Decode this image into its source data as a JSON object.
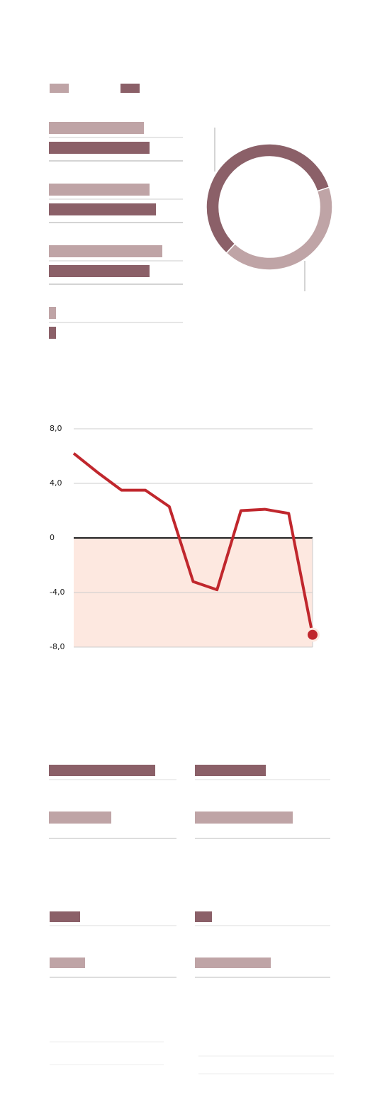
{
  "chart_data": [
    {
      "type": "bar",
      "orientation": "horizontal",
      "categories": [
        null,
        null,
        null,
        null
      ],
      "series": [
        {
          "color": "#bfa4a6",
          "values": [
            134,
            142,
            160,
            10
          ]
        },
        {
          "color": "#8b6068",
          "values": [
            142,
            151,
            142,
            10
          ]
        }
      ]
    },
    {
      "type": "pie",
      "donut": true,
      "categories": [
        null,
        null
      ],
      "values": [
        58,
        42
      ],
      "colors": [
        "#8b6068",
        "#bfa4a6"
      ]
    },
    {
      "type": "line",
      "categories": [
        null,
        null,
        null,
        null,
        null,
        null,
        null,
        null,
        null,
        null,
        null
      ],
      "series": [
        {
          "color": "#c0272d",
          "values": [
            6.2,
            4.8,
            3.5,
            3.5,
            2.3,
            -3.2,
            -3.8,
            2.0,
            2.1,
            1.8,
            -7.1
          ]
        }
      ],
      "ylim": [
        -8,
        8
      ],
      "yticks": [
        {
          "value": -8,
          "label": "-8,0"
        },
        {
          "value": -4,
          "label": "-4,0"
        },
        0,
        {
          "value": 4,
          "label": "4,0"
        },
        {
          "value": 8,
          "label": "8,0"
        }
      ],
      "grid": true,
      "negative_fill": "#fde8e0"
    },
    {
      "type": "bar",
      "orientation": "horizontal",
      "categories": [
        null,
        null
      ],
      "values": [
        150,
        88
      ],
      "colors": [
        "#8b6068",
        "#bfa4a6"
      ]
    },
    {
      "type": "bar",
      "orientation": "horizontal",
      "categories": [
        null,
        null
      ],
      "values": [
        100,
        138
      ],
      "colors": [
        "#8b6068",
        "#bfa4a6"
      ]
    },
    {
      "type": "bar",
      "orientation": "horizontal",
      "categories": [
        null,
        null
      ],
      "values": [
        43,
        50
      ],
      "colors": [
        "#8b6068",
        "#bfa4a6"
      ]
    },
    {
      "type": "bar",
      "orientation": "horizontal",
      "categories": [
        null,
        null
      ],
      "values": [
        24,
        107
      ],
      "colors": [
        "#8b6068",
        "#bfa4a6"
      ]
    }
  ]
}
